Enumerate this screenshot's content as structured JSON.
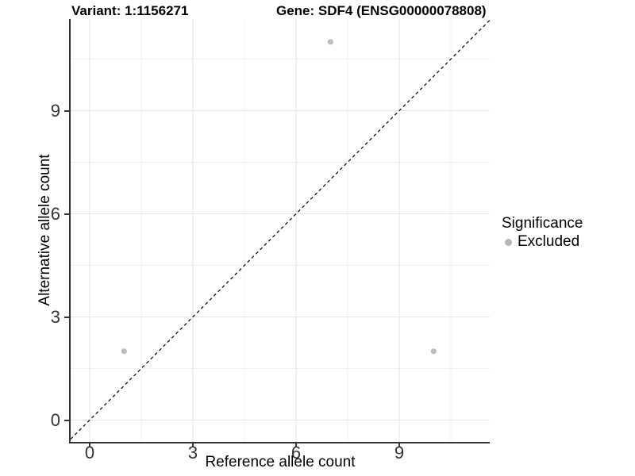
{
  "chart_data": {
    "type": "scatter",
    "titles": {
      "left": "Variant: 1:1156271",
      "right": "Gene: SDF4 (ENSG00000078808)"
    },
    "xlabel": "Reference allele count",
    "ylabel": "Alternative allele count",
    "x_ticks": [
      0,
      3,
      6,
      9
    ],
    "y_ticks": [
      0,
      3,
      6,
      9
    ],
    "x_minor": [
      1.5,
      4.5,
      7.5,
      10.5
    ],
    "y_minor": [
      1.5,
      4.5,
      7.5,
      10.5
    ],
    "xlim": [
      -0.55,
      11.63
    ],
    "ylim": [
      -0.63,
      11.67
    ],
    "grid": true,
    "series": [
      {
        "name": "Excluded",
        "color": "#bdbdbd",
        "points": [
          {
            "x": 1,
            "y": 2
          },
          {
            "x": 7,
            "y": 11
          },
          {
            "x": 10,
            "y": 2
          }
        ]
      }
    ],
    "reference_line": {
      "slope": 1,
      "intercept": 0,
      "style": "dashed",
      "color": "#000000"
    },
    "legend": {
      "title": "Significance",
      "position": "right",
      "entries": [
        {
          "label": "Excluded",
          "color": "#b5b5b5"
        }
      ]
    },
    "colors": {
      "axis_line": "#333333",
      "grid_major": "#e4e4e4",
      "grid_minor": "#f1f1f1",
      "tick_text": "#333333",
      "background": "#ffffff"
    },
    "point_radius": 3.6
  }
}
